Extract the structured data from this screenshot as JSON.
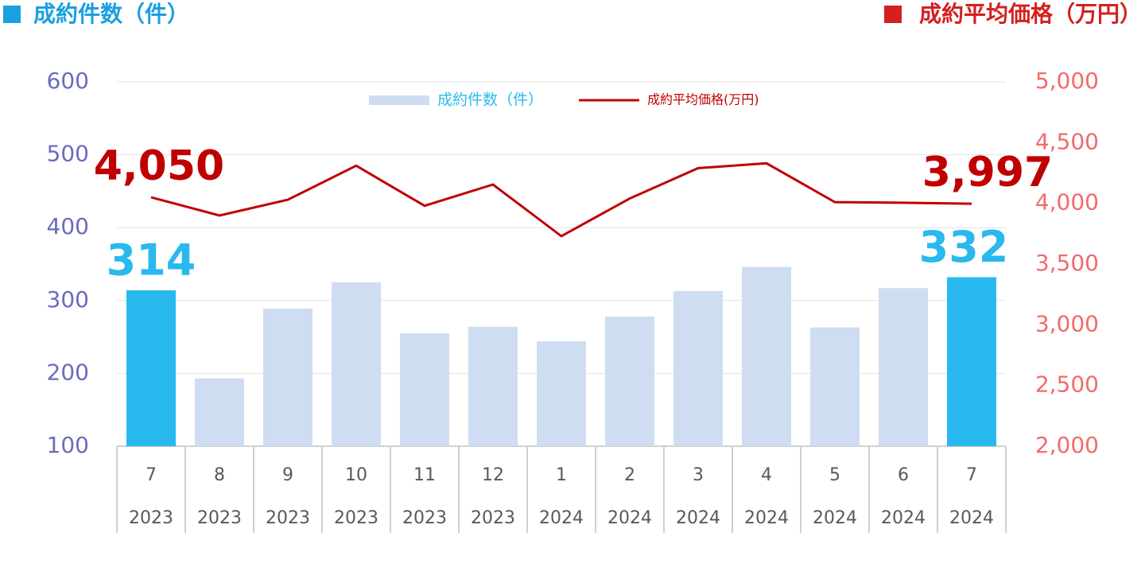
{
  "chart_data": {
    "type": "bar",
    "left_header": "成約件数（件）",
    "right_header": "成約平均価格（万円）",
    "categories": [
      "7",
      "8",
      "9",
      "10",
      "11",
      "12",
      "1",
      "2",
      "3",
      "4",
      "5",
      "6",
      "7"
    ],
    "category_years": [
      "2023",
      "2023",
      "2023",
      "2023",
      "2023",
      "2023",
      "2024",
      "2024",
      "2024",
      "2024",
      "2024",
      "2024",
      "2024"
    ],
    "series": [
      {
        "name": "成約件数（件）",
        "type": "bar",
        "axis": "y",
        "colors": [
          "#29b9ee",
          "#cfddf2",
          "#cfddf2",
          "#cfddf2",
          "#cfddf2",
          "#cfddf2",
          "#cfddf2",
          "#cfddf2",
          "#cfddf2",
          "#cfddf2",
          "#cfddf2",
          "#cfddf2",
          "#29b9ee"
        ],
        "color": "#cfddf2",
        "label_color": "#29b9ee",
        "values": [
          314,
          193,
          289,
          325,
          255,
          264,
          244,
          278,
          313,
          346,
          263,
          317,
          332
        ],
        "value_labels": [
          "314",
          null,
          null,
          null,
          null,
          null,
          null,
          null,
          null,
          null,
          null,
          null,
          "332"
        ]
      },
      {
        "name": "成約平均価格(万円)",
        "type": "line",
        "axis": "y2",
        "color": "#c00000",
        "label_color": "#c00000",
        "values": [
          4050,
          3900,
          4030,
          4310,
          3980,
          4155,
          3730,
          4040,
          4290,
          4330,
          4010,
          4005,
          3997
        ],
        "value_labels": [
          "4,050",
          null,
          null,
          null,
          null,
          null,
          null,
          null,
          null,
          null,
          null,
          null,
          "3,997"
        ]
      }
    ],
    "ylim": [
      100,
      600
    ],
    "yticks": [
      100,
      200,
      300,
      400,
      500,
      600
    ],
    "y2lim": [
      2000,
      5000
    ],
    "y2ticks": [
      {
        "value": 2000,
        "label": "2,000"
      },
      {
        "value": 2500,
        "label": "2,500"
      },
      {
        "value": 3000,
        "label": "3,000"
      },
      {
        "value": 3500,
        "label": "3,500"
      },
      {
        "value": 4000,
        "label": "4,000"
      },
      {
        "value": 4500,
        "label": "4,500"
      },
      {
        "value": 5000,
        "label": "5,000"
      }
    ],
    "grid": true,
    "legend": "top"
  }
}
